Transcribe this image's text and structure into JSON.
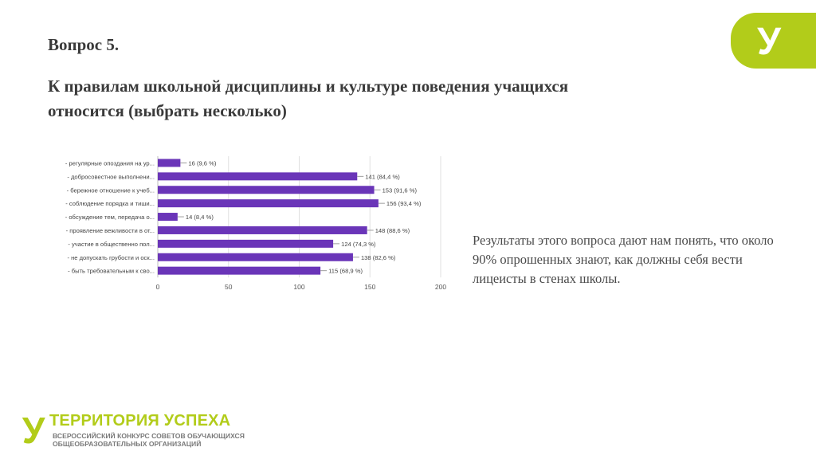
{
  "slide": {
    "title": "Вопрос 5.",
    "subtitle": "К правилам школьной дисциплины и культуре поведения учащихся относится (выбрать несколько)",
    "body_text": "Результаты этого вопроса дают нам понять, что около 90% опрошенных знают, как должны себя вести лицеисты в стенах школы.",
    "logo_glyph": "У"
  },
  "footer": {
    "brand_name": "ТЕРРИТОРИЯ УСПЕХА",
    "brand_sub_line1": "ВСЕРОССИЙСКИЙ КОНКУРС СОВЕТОВ ОБУЧАЮЩИХСЯ",
    "brand_sub_line2": "ОБЩЕОБРАЗОВАТЕЛЬНЫХ ОРГАНИЗАЦИЙ",
    "logo_glyph": "У"
  },
  "colors": {
    "bar": "#6a35b8",
    "accent_green": "#b2cc1a",
    "axis_text": "#555555",
    "title_text": "#3a3a3a"
  },
  "chart_data": {
    "type": "bar",
    "orientation": "horizontal",
    "categories": [
      "- регулярные опоздания на ур...",
      "- добросовестное выполнени...",
      "- бережное отношение к учеб...",
      "- соблюдение порядка и тиши...",
      "- обсуждение тем, передача о...",
      "- проявление вежливости в от...",
      "- участие в общественно пол...",
      "- не допускать грубости и оск...",
      "- быть требовательным к сво..."
    ],
    "values": [
      16,
      141,
      153,
      156,
      14,
      148,
      124,
      138,
      115
    ],
    "data_labels": [
      "16 (9,6 %)",
      "141 (84,4 %)",
      "153 (91,6 %)",
      "156 (93,4 %)",
      "14 (8,4 %)",
      "148 (88,6 %)",
      "124 (74,3 %)",
      "138 (82,6 %)",
      "115 (68,9 %)"
    ],
    "xlim": [
      0,
      200
    ],
    "xticks": [
      0,
      50,
      100,
      150,
      200
    ],
    "grid": true
  }
}
